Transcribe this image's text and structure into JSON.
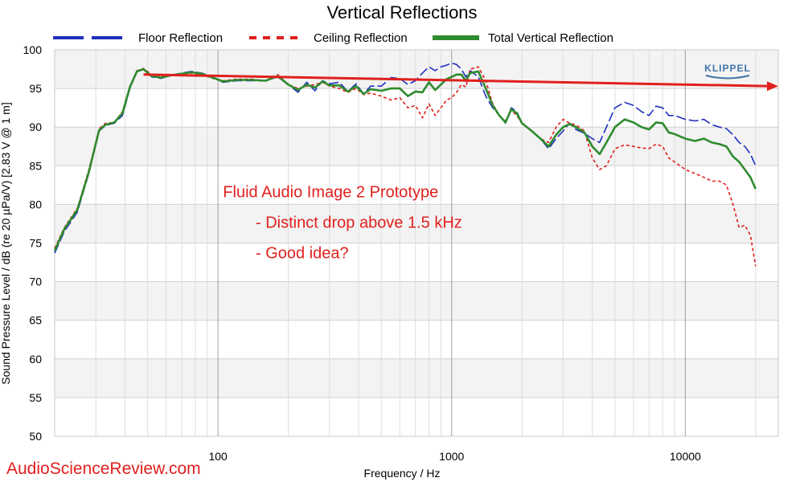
{
  "chart_data": {
    "type": "line",
    "title": "Vertical Reflections",
    "xlabel": "Frequency / Hz",
    "ylabel": "Sound Pressure Level / dB (re 20 µPa/V)  [2.83  V @ 1  m]",
    "xscale": "log",
    "xlim": [
      20,
      25000
    ],
    "ylim": [
      50,
      100
    ],
    "x_ticks": [
      100,
      1000,
      10000
    ],
    "x_tick_labels": [
      "100",
      "1000",
      "10000"
    ],
    "y_ticks": [
      50,
      55,
      60,
      65,
      70,
      75,
      80,
      85,
      90,
      95,
      100
    ],
    "y_tick_labels": [
      "50",
      "55",
      "60",
      "65",
      "70",
      "75",
      "80",
      "85",
      "90",
      "95",
      "100"
    ],
    "grid": true,
    "legend_position": "top",
    "logo": "KLIPPEL",
    "series": [
      {
        "name": "Floor Reflection",
        "color": "#1f2fbf",
        "dash": "dashed",
        "points": [
          [
            20,
            73.7
          ],
          [
            22,
            76.5
          ],
          [
            25,
            79
          ],
          [
            28,
            84
          ],
          [
            31,
            89.5
          ],
          [
            33,
            90.2
          ],
          [
            36,
            90.5
          ],
          [
            39,
            91.5
          ],
          [
            42,
            95
          ],
          [
            45,
            97.2
          ],
          [
            48,
            97.5
          ],
          [
            52,
            96.5
          ],
          [
            57,
            96.3
          ],
          [
            63,
            96.7
          ],
          [
            70,
            97
          ],
          [
            77,
            97.2
          ],
          [
            85,
            97
          ],
          [
            95,
            96.5
          ],
          [
            105,
            95.8
          ],
          [
            120,
            96
          ],
          [
            140,
            96
          ],
          [
            160,
            96
          ],
          [
            180,
            96.5
          ],
          [
            200,
            95.5
          ],
          [
            220,
            94.5
          ],
          [
            240,
            95.8
          ],
          [
            260,
            94.7
          ],
          [
            280,
            96
          ],
          [
            300,
            95.6
          ],
          [
            330,
            95.8
          ],
          [
            360,
            94.6
          ],
          [
            390,
            95.6
          ],
          [
            420,
            94.3
          ],
          [
            450,
            95.3
          ],
          [
            500,
            95.3
          ],
          [
            550,
            96.4
          ],
          [
            600,
            96.3
          ],
          [
            650,
            95.5
          ],
          [
            700,
            96
          ],
          [
            750,
            97
          ],
          [
            800,
            97.8
          ],
          [
            850,
            97.3
          ],
          [
            900,
            97.8
          ],
          [
            950,
            98
          ],
          [
            1000,
            98.3
          ],
          [
            1050,
            98.1
          ],
          [
            1100,
            97.5
          ],
          [
            1150,
            96.5
          ],
          [
            1200,
            97.3
          ],
          [
            1300,
            96.5
          ],
          [
            1400,
            94
          ],
          [
            1500,
            92.5
          ],
          [
            1600,
            91.5
          ],
          [
            1700,
            90.5
          ],
          [
            1800,
            92.5
          ],
          [
            1900,
            92
          ],
          [
            2000,
            90.5
          ],
          [
            2200,
            89.5
          ],
          [
            2400,
            88.5
          ],
          [
            2600,
            87.2
          ],
          [
            2800,
            88.5
          ],
          [
            3000,
            89.5
          ],
          [
            3200,
            90.5
          ],
          [
            3400,
            89.7
          ],
          [
            3700,
            89.2
          ],
          [
            4000,
            88.5
          ],
          [
            4300,
            88
          ],
          [
            4600,
            90
          ],
          [
            5000,
            92.5
          ],
          [
            5500,
            93.2
          ],
          [
            6000,
            92.8
          ],
          [
            6500,
            92
          ],
          [
            7000,
            91.5
          ],
          [
            7500,
            92.7
          ],
          [
            8000,
            92.5
          ],
          [
            8500,
            91.5
          ],
          [
            9000,
            91.5
          ],
          [
            10000,
            91
          ],
          [
            11000,
            90.8
          ],
          [
            12000,
            91
          ],
          [
            13000,
            90.3
          ],
          [
            14000,
            90
          ],
          [
            15000,
            89.8
          ],
          [
            16000,
            89
          ],
          [
            17000,
            88
          ],
          [
            18000,
            87.5
          ],
          [
            19000,
            86.5
          ],
          [
            20000,
            85
          ]
        ]
      },
      {
        "name": "Ceiling Reflection",
        "color": "#e0201e",
        "dash": "dotted",
        "points": [
          [
            20,
            74.3
          ],
          [
            22,
            77
          ],
          [
            25,
            79.5
          ],
          [
            28,
            84.5
          ],
          [
            31,
            89.8
          ],
          [
            33,
            90.5
          ],
          [
            36,
            90.6
          ],
          [
            39,
            92
          ],
          [
            42,
            95.3
          ],
          [
            45,
            97.3
          ],
          [
            48,
            97.6
          ],
          [
            52,
            96.8
          ],
          [
            57,
            96.5
          ],
          [
            63,
            96.8
          ],
          [
            70,
            96.8
          ],
          [
            77,
            97
          ],
          [
            85,
            96.8
          ],
          [
            95,
            96.3
          ],
          [
            105,
            96
          ],
          [
            120,
            96.2
          ],
          [
            140,
            96.2
          ],
          [
            160,
            96
          ],
          [
            180,
            96.8
          ],
          [
            200,
            95.5
          ],
          [
            220,
            95
          ],
          [
            240,
            95.3
          ],
          [
            260,
            95.5
          ],
          [
            280,
            95.8
          ],
          [
            300,
            95.3
          ],
          [
            330,
            95
          ],
          [
            360,
            94.5
          ],
          [
            390,
            95
          ],
          [
            420,
            94.2
          ],
          [
            450,
            94.4
          ],
          [
            500,
            94
          ],
          [
            550,
            93.5
          ],
          [
            600,
            93.8
          ],
          [
            650,
            92.5
          ],
          [
            700,
            92.8
          ],
          [
            750,
            91.2
          ],
          [
            800,
            93
          ],
          [
            850,
            91.5
          ],
          [
            900,
            92.5
          ],
          [
            950,
            93.5
          ],
          [
            1000,
            93.8
          ],
          [
            1050,
            94.5
          ],
          [
            1100,
            95.5
          ],
          [
            1150,
            95.2
          ],
          [
            1200,
            97.5
          ],
          [
            1300,
            97.8
          ],
          [
            1400,
            96
          ],
          [
            1500,
            93
          ],
          [
            1600,
            91.5
          ],
          [
            1700,
            90.8
          ],
          [
            1800,
            92.2
          ],
          [
            1900,
            91.5
          ],
          [
            2000,
            90.5
          ],
          [
            2200,
            89.5
          ],
          [
            2400,
            88.5
          ],
          [
            2600,
            88
          ],
          [
            2800,
            90
          ],
          [
            3000,
            91
          ],
          [
            3200,
            90.5
          ],
          [
            3400,
            90.3
          ],
          [
            3700,
            89.5
          ],
          [
            4000,
            86
          ],
          [
            4300,
            84.5
          ],
          [
            4600,
            85
          ],
          [
            5000,
            87.2
          ],
          [
            5500,
            87.7
          ],
          [
            6000,
            87.5
          ],
          [
            6500,
            87.3
          ],
          [
            7000,
            87.2
          ],
          [
            7500,
            87.8
          ],
          [
            8000,
            87.5
          ],
          [
            8500,
            86
          ],
          [
            9000,
            85.5
          ],
          [
            10000,
            84.5
          ],
          [
            11000,
            84
          ],
          [
            12000,
            83.5
          ],
          [
            13000,
            83
          ],
          [
            14000,
            83
          ],
          [
            15000,
            82.5
          ],
          [
            16000,
            80
          ],
          [
            17000,
            77
          ],
          [
            18000,
            77.3
          ],
          [
            19000,
            76
          ],
          [
            20000,
            72
          ]
        ]
      },
      {
        "name": "Total Vertical Reflection",
        "color": "#2e8b2e",
        "dash": "solid",
        "points": [
          [
            20,
            74
          ],
          [
            22,
            76.8
          ],
          [
            25,
            79.3
          ],
          [
            28,
            84.2
          ],
          [
            31,
            89.6
          ],
          [
            33,
            90.3
          ],
          [
            36,
            90.6
          ],
          [
            39,
            91.8
          ],
          [
            42,
            95.2
          ],
          [
            45,
            97.2
          ],
          [
            48,
            97.5
          ],
          [
            52,
            96.6
          ],
          [
            57,
            96.4
          ],
          [
            63,
            96.7
          ],
          [
            70,
            96.9
          ],
          [
            77,
            97.1
          ],
          [
            85,
            96.9
          ],
          [
            95,
            96.4
          ],
          [
            105,
            95.9
          ],
          [
            120,
            96.1
          ],
          [
            140,
            96.1
          ],
          [
            160,
            96
          ],
          [
            180,
            96.6
          ],
          [
            200,
            95.5
          ],
          [
            220,
            94.8
          ],
          [
            240,
            95.5
          ],
          [
            260,
            95.1
          ],
          [
            280,
            95.9
          ],
          [
            300,
            95.4
          ],
          [
            330,
            95.4
          ],
          [
            360,
            94.6
          ],
          [
            390,
            95.3
          ],
          [
            420,
            94.3
          ],
          [
            450,
            94.9
          ],
          [
            500,
            94.7
          ],
          [
            550,
            95
          ],
          [
            600,
            95
          ],
          [
            650,
            94
          ],
          [
            700,
            94.6
          ],
          [
            750,
            94.5
          ],
          [
            800,
            95.8
          ],
          [
            850,
            94.8
          ],
          [
            900,
            95.5
          ],
          [
            950,
            96.2
          ],
          [
            1000,
            96.5
          ],
          [
            1050,
            96.8
          ],
          [
            1100,
            96.8
          ],
          [
            1150,
            96
          ],
          [
            1200,
            97
          ],
          [
            1300,
            97.2
          ],
          [
            1400,
            95
          ],
          [
            1500,
            92.8
          ],
          [
            1600,
            91.5
          ],
          [
            1700,
            90.6
          ],
          [
            1800,
            92.3
          ],
          [
            1900,
            91.8
          ],
          [
            2000,
            90.5
          ],
          [
            2200,
            89.5
          ],
          [
            2400,
            88.5
          ],
          [
            2600,
            87.5
          ],
          [
            2800,
            89
          ],
          [
            3000,
            90
          ],
          [
            3200,
            90.4
          ],
          [
            3400,
            90
          ],
          [
            3700,
            89.3
          ],
          [
            4000,
            87.5
          ],
          [
            4300,
            86.5
          ],
          [
            4600,
            88
          ],
          [
            5000,
            90
          ],
          [
            5500,
            91
          ],
          [
            6000,
            90.6
          ],
          [
            6500,
            90
          ],
          [
            7000,
            89.7
          ],
          [
            7500,
            90.6
          ],
          [
            8000,
            90.5
          ],
          [
            8500,
            89.3
          ],
          [
            9000,
            89.1
          ],
          [
            10000,
            88.5
          ],
          [
            11000,
            88.2
          ],
          [
            12000,
            88.5
          ],
          [
            13000,
            88
          ],
          [
            14000,
            87.8
          ],
          [
            15000,
            87.5
          ],
          [
            16000,
            86.2
          ],
          [
            17000,
            85.5
          ],
          [
            18000,
            84.5
          ],
          [
            19000,
            83.5
          ],
          [
            20000,
            82
          ]
        ]
      }
    ],
    "trend_arrow": {
      "color": "#e0201e",
      "from": [
        48,
        96.8
      ],
      "to": [
        25000,
        95.3
      ]
    },
    "annotations": [
      {
        "text": "Fluid Audio Image 2 Prototype",
        "at": [
          105,
          80.9
        ]
      },
      {
        "text": "- Distinct drop above 1.5 kHz",
        "at": [
          145,
          77
        ]
      },
      {
        "text": "- Good idea?",
        "at": [
          145,
          73
        ]
      }
    ]
  },
  "watermark": "AudioScienceReview.com"
}
